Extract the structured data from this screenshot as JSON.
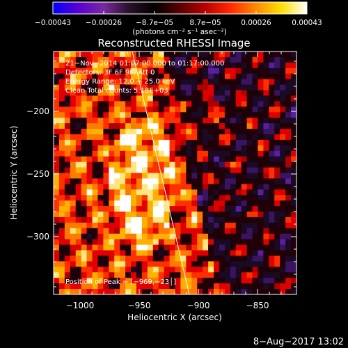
{
  "colorbar": {
    "tick_labels": [
      "−0.00043",
      "−0.00026",
      "−8.7e−05",
      "8.7e−05",
      "0.00026",
      "0.00043"
    ],
    "units_label": "(photons cm⁻² s⁻¹ asec⁻²)",
    "stops": [
      "#0000ff",
      "#5a00d0",
      "#7a2aa0",
      "#2a102a",
      "#000000",
      "#5a0000",
      "#b80000",
      "#ff2a00",
      "#ff8a00",
      "#ffe000",
      "#ffffff"
    ]
  },
  "plot": {
    "title": "Reconstructed RHESSI Image",
    "xlabel": "Heliocentric X (arcsec)",
    "ylabel": "Heliocentric Y (arcsec)",
    "x_ticks": [
      "−1000",
      "−950",
      "−900",
      "−850"
    ],
    "y_ticks": [
      "−200",
      "−250",
      "−300"
    ],
    "info_lines": [
      "21−Nov−2014 01:07:00.000 to 01:17:00.000",
      "Detectors: 3F 6F 9F, Att 0",
      "Energy Range: 12.0 − 25.0 keV",
      "Clean    Total counts: 5.18E+03"
    ],
    "peak_label": "Position of Peak = [−969,−23│]"
  },
  "footer": {
    "date": "8−Aug−2017 13:02"
  }
}
